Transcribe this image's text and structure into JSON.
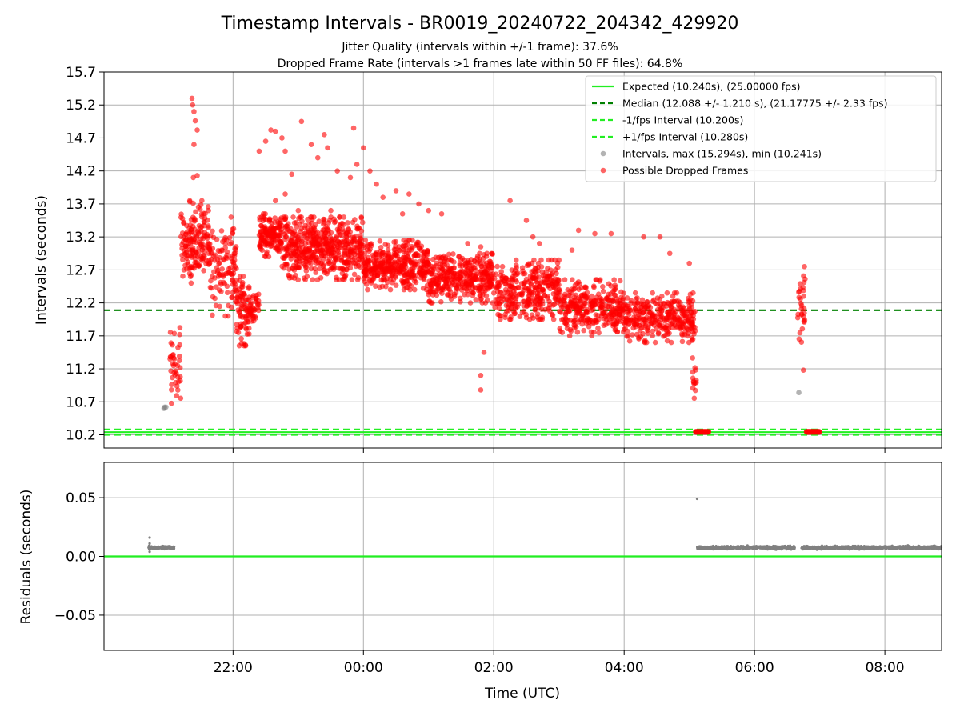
{
  "figure": {
    "title": "Timestamp Intervals - BR0019_20240722_204342_429920",
    "subtitle_1": "Jitter Quality (intervals within +/-1 frame): 37.6%",
    "subtitle_2": "Dropped Frame Rate (intervals >1 frames late within 50 FF files): 64.8%"
  },
  "chart_data": [
    {
      "type": "scatter",
      "panel": "top",
      "ylabel": "Intervals (seconds)",
      "ylim": [
        10.0,
        15.7
      ],
      "yticks": [
        10.2,
        10.7,
        11.2,
        11.7,
        12.2,
        12.7,
        13.2,
        13.7,
        14.2,
        14.7,
        15.2,
        15.7
      ],
      "ytick_labels": [
        "10.2",
        "10.7",
        "11.2",
        "11.7",
        "12.2",
        "12.7",
        "13.2",
        "13.7",
        "14.2",
        "14.7",
        "15.2",
        "15.7"
      ],
      "xlim_hours": [
        -3.98,
        8.87
      ],
      "grid": true,
      "legend_position": "top-right",
      "expected": 10.24,
      "median": 12.088,
      "minus_fps": 10.2,
      "plus_fps": 10.28,
      "colors": {
        "expected": "#22ee22",
        "median": "#008000",
        "fps_band": "#22ee22",
        "intervals": "#808080",
        "dropped": "#ff0000"
      },
      "legend": [
        {
          "label": "Expected (10.240s), (25.00000 fps)",
          "style": "solid-line",
          "color": "#22ee22"
        },
        {
          "label": "Median (12.088 +/- 1.210 s), (21.17775 +/- 2.33 fps)",
          "style": "dashed-line",
          "color": "#008000"
        },
        {
          "label": "-1/fps Interval (10.200s)",
          "style": "dashed-line",
          "color": "#22ee22"
        },
        {
          "label": "+1/fps Interval (10.280s)",
          "style": "dashed-line",
          "color": "#22ee22"
        },
        {
          "label": "Intervals, max (15.294s), min (10.241s)",
          "style": "dot",
          "color": "#808080"
        },
        {
          "label": "Possible Dropped Frames",
          "style": "dot",
          "color": "#ff0000"
        }
      ],
      "gray_points": [
        [
          -3.06,
          10.6
        ],
        [
          -3.05,
          10.62
        ],
        [
          -3.03,
          10.62
        ],
        [
          6.68,
          10.84
        ]
      ],
      "dropped_density": [
        {
          "t0": -2.97,
          "t1": -2.8,
          "lo": 10.65,
          "hi": 11.85,
          "n": 40
        },
        {
          "t0": -2.8,
          "t1": -2.35,
          "lo": 12.5,
          "hi": 13.75,
          "n": 170
        },
        {
          "t0": -2.35,
          "t1": -1.95,
          "lo": 12.0,
          "hi": 13.5,
          "n": 110
        },
        {
          "t0": -1.95,
          "t1": -1.75,
          "lo": 11.55,
          "hi": 12.6,
          "n": 80
        },
        {
          "t0": -1.75,
          "t1": -1.6,
          "lo": 11.8,
          "hi": 12.4,
          "n": 40
        },
        {
          "t0": -1.6,
          "t1": -1.25,
          "lo": 12.9,
          "hi": 13.55,
          "n": 150
        },
        {
          "t0": -1.25,
          "t1": 0.0,
          "lo": 12.55,
          "hi": 13.5,
          "n": 520
        },
        {
          "t0": 0.0,
          "t1": 1.0,
          "lo": 12.4,
          "hi": 13.15,
          "n": 380
        },
        {
          "t0": 1.0,
          "t1": 2.0,
          "lo": 12.2,
          "hi": 12.95,
          "n": 360
        },
        {
          "t0": 2.0,
          "t1": 3.0,
          "lo": 11.95,
          "hi": 12.85,
          "n": 320
        },
        {
          "t0": 3.0,
          "t1": 4.0,
          "lo": 11.7,
          "hi": 12.55,
          "n": 320
        },
        {
          "t0": 4.0,
          "t1": 5.1,
          "lo": 11.6,
          "hi": 12.35,
          "n": 320
        },
        {
          "t0": 5.05,
          "t1": 5.12,
          "lo": 10.6,
          "hi": 11.4,
          "n": 14
        },
        {
          "t0": 6.66,
          "t1": 6.78,
          "lo": 11.6,
          "hi": 12.75,
          "n": 30
        }
      ],
      "dropped_outliers": [
        [
          -2.63,
          15.3
        ],
        [
          -2.62,
          15.2
        ],
        [
          -2.6,
          15.1
        ],
        [
          -2.58,
          14.96
        ],
        [
          -2.6,
          14.6
        ],
        [
          -2.55,
          14.82
        ],
        [
          -2.61,
          14.1
        ],
        [
          -2.55,
          14.13
        ],
        [
          -1.6,
          14.5
        ],
        [
          -1.5,
          14.65
        ],
        [
          -1.42,
          14.82
        ],
        [
          -1.35,
          14.8
        ],
        [
          -1.25,
          14.7
        ],
        [
          -1.2,
          14.5
        ],
        [
          -1.1,
          14.15
        ],
        [
          -1.2,
          13.85
        ],
        [
          -1.35,
          13.75
        ],
        [
          -1.0,
          13.6
        ],
        [
          -0.95,
          14.95
        ],
        [
          -0.8,
          14.6
        ],
        [
          -0.7,
          14.4
        ],
        [
          -0.55,
          14.55
        ],
        [
          -0.4,
          14.2
        ],
        [
          -0.5,
          13.6
        ],
        [
          -0.3,
          13.5
        ],
        [
          -0.2,
          14.1
        ],
        [
          0.0,
          14.55
        ],
        [
          0.1,
          14.2
        ],
        [
          -0.6,
          14.75
        ],
        [
          -0.15,
          14.85
        ],
        [
          -0.1,
          14.3
        ],
        [
          0.2,
          14.0
        ],
        [
          0.3,
          13.8
        ],
        [
          0.5,
          13.9
        ],
        [
          0.6,
          13.55
        ],
        [
          0.7,
          13.85
        ],
        [
          0.85,
          13.7
        ],
        [
          1.0,
          13.6
        ],
        [
          1.2,
          13.55
        ],
        [
          1.6,
          13.1
        ],
        [
          1.8,
          13.05
        ],
        [
          2.25,
          13.75
        ],
        [
          2.5,
          13.45
        ],
        [
          2.6,
          13.2
        ],
        [
          2.7,
          13.1
        ],
        [
          3.2,
          13.0
        ],
        [
          3.3,
          13.3
        ],
        [
          3.8,
          13.25
        ],
        [
          4.3,
          13.2
        ],
        [
          4.55,
          13.2
        ],
        [
          4.7,
          12.95
        ],
        [
          5.0,
          12.8
        ],
        [
          3.0,
          12.85
        ],
        [
          3.55,
          13.25
        ],
        [
          1.85,
          11.45
        ],
        [
          1.8,
          11.1
        ],
        [
          1.8,
          10.88
        ],
        [
          6.75,
          11.18
        ]
      ],
      "dropped_baseline": [
        [
          5.1,
          5.3
        ],
        [
          6.8,
          7.0
        ]
      ],
      "baseline_gap": [
        5.3,
        6.8
      ]
    },
    {
      "type": "scatter",
      "panel": "bottom",
      "ylabel": "Residuals (seconds)",
      "xlabel": "Time (UTC)",
      "ylim": [
        -0.08,
        0.08
      ],
      "yticks": [
        -0.05,
        0.0,
        0.05
      ],
      "ytick_labels": [
        "−0.05",
        "0.00",
        "0.05"
      ],
      "xticks_hours": [
        -2,
        0,
        2,
        4,
        6,
        8
      ],
      "xtick_labels": [
        "22:00",
        "00:00",
        "02:00",
        "04:00",
        "06:00",
        "08:00"
      ],
      "grid": true,
      "zero_line_color": "#22ee22",
      "residual_value": 0.0075,
      "residual_jitter": 0.0022,
      "residual_spans": [
        [
          -3.3,
          -2.9
        ],
        [
          5.12,
          6.62
        ],
        [
          6.72,
          8.87
        ]
      ],
      "residual_outliers": [
        [
          -3.28,
          0.016
        ],
        [
          -3.28,
          0.011
        ],
        [
          -3.28,
          0.004
        ],
        [
          5.12,
          0.049
        ]
      ],
      "points_per_hour": 520
    }
  ]
}
